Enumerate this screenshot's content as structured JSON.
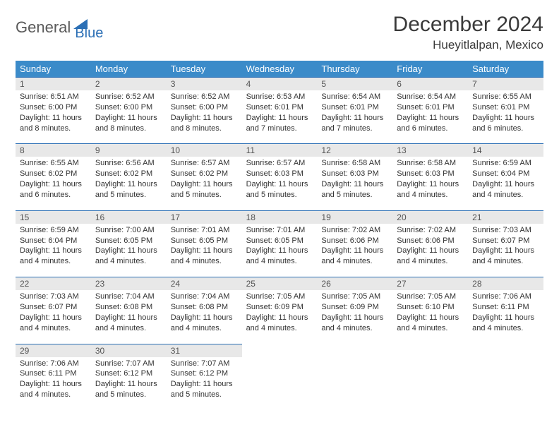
{
  "logo": {
    "text1": "General",
    "text2": "Blue"
  },
  "title": "December 2024",
  "location": "Hueyitlalpan, Mexico",
  "colors": {
    "header_bg": "#3b8bc9",
    "border": "#2b6fb5",
    "daynum_bg": "#e8e8e8",
    "logo_gray": "#5a5a5a",
    "logo_blue": "#2b6fb5"
  },
  "weekdays": [
    "Sunday",
    "Monday",
    "Tuesday",
    "Wednesday",
    "Thursday",
    "Friday",
    "Saturday"
  ],
  "weeks": [
    [
      {
        "n": "1",
        "sunrise": "Sunrise: 6:51 AM",
        "sunset": "Sunset: 6:00 PM",
        "daylight": "Daylight: 11 hours and 8 minutes."
      },
      {
        "n": "2",
        "sunrise": "Sunrise: 6:52 AM",
        "sunset": "Sunset: 6:00 PM",
        "daylight": "Daylight: 11 hours and 8 minutes."
      },
      {
        "n": "3",
        "sunrise": "Sunrise: 6:52 AM",
        "sunset": "Sunset: 6:00 PM",
        "daylight": "Daylight: 11 hours and 8 minutes."
      },
      {
        "n": "4",
        "sunrise": "Sunrise: 6:53 AM",
        "sunset": "Sunset: 6:01 PM",
        "daylight": "Daylight: 11 hours and 7 minutes."
      },
      {
        "n": "5",
        "sunrise": "Sunrise: 6:54 AM",
        "sunset": "Sunset: 6:01 PM",
        "daylight": "Daylight: 11 hours and 7 minutes."
      },
      {
        "n": "6",
        "sunrise": "Sunrise: 6:54 AM",
        "sunset": "Sunset: 6:01 PM",
        "daylight": "Daylight: 11 hours and 6 minutes."
      },
      {
        "n": "7",
        "sunrise": "Sunrise: 6:55 AM",
        "sunset": "Sunset: 6:01 PM",
        "daylight": "Daylight: 11 hours and 6 minutes."
      }
    ],
    [
      {
        "n": "8",
        "sunrise": "Sunrise: 6:55 AM",
        "sunset": "Sunset: 6:02 PM",
        "daylight": "Daylight: 11 hours and 6 minutes."
      },
      {
        "n": "9",
        "sunrise": "Sunrise: 6:56 AM",
        "sunset": "Sunset: 6:02 PM",
        "daylight": "Daylight: 11 hours and 5 minutes."
      },
      {
        "n": "10",
        "sunrise": "Sunrise: 6:57 AM",
        "sunset": "Sunset: 6:02 PM",
        "daylight": "Daylight: 11 hours and 5 minutes."
      },
      {
        "n": "11",
        "sunrise": "Sunrise: 6:57 AM",
        "sunset": "Sunset: 6:03 PM",
        "daylight": "Daylight: 11 hours and 5 minutes."
      },
      {
        "n": "12",
        "sunrise": "Sunrise: 6:58 AM",
        "sunset": "Sunset: 6:03 PM",
        "daylight": "Daylight: 11 hours and 5 minutes."
      },
      {
        "n": "13",
        "sunrise": "Sunrise: 6:58 AM",
        "sunset": "Sunset: 6:03 PM",
        "daylight": "Daylight: 11 hours and 4 minutes."
      },
      {
        "n": "14",
        "sunrise": "Sunrise: 6:59 AM",
        "sunset": "Sunset: 6:04 PM",
        "daylight": "Daylight: 11 hours and 4 minutes."
      }
    ],
    [
      {
        "n": "15",
        "sunrise": "Sunrise: 6:59 AM",
        "sunset": "Sunset: 6:04 PM",
        "daylight": "Daylight: 11 hours and 4 minutes."
      },
      {
        "n": "16",
        "sunrise": "Sunrise: 7:00 AM",
        "sunset": "Sunset: 6:05 PM",
        "daylight": "Daylight: 11 hours and 4 minutes."
      },
      {
        "n": "17",
        "sunrise": "Sunrise: 7:01 AM",
        "sunset": "Sunset: 6:05 PM",
        "daylight": "Daylight: 11 hours and 4 minutes."
      },
      {
        "n": "18",
        "sunrise": "Sunrise: 7:01 AM",
        "sunset": "Sunset: 6:05 PM",
        "daylight": "Daylight: 11 hours and 4 minutes."
      },
      {
        "n": "19",
        "sunrise": "Sunrise: 7:02 AM",
        "sunset": "Sunset: 6:06 PM",
        "daylight": "Daylight: 11 hours and 4 minutes."
      },
      {
        "n": "20",
        "sunrise": "Sunrise: 7:02 AM",
        "sunset": "Sunset: 6:06 PM",
        "daylight": "Daylight: 11 hours and 4 minutes."
      },
      {
        "n": "21",
        "sunrise": "Sunrise: 7:03 AM",
        "sunset": "Sunset: 6:07 PM",
        "daylight": "Daylight: 11 hours and 4 minutes."
      }
    ],
    [
      {
        "n": "22",
        "sunrise": "Sunrise: 7:03 AM",
        "sunset": "Sunset: 6:07 PM",
        "daylight": "Daylight: 11 hours and 4 minutes."
      },
      {
        "n": "23",
        "sunrise": "Sunrise: 7:04 AM",
        "sunset": "Sunset: 6:08 PM",
        "daylight": "Daylight: 11 hours and 4 minutes."
      },
      {
        "n": "24",
        "sunrise": "Sunrise: 7:04 AM",
        "sunset": "Sunset: 6:08 PM",
        "daylight": "Daylight: 11 hours and 4 minutes."
      },
      {
        "n": "25",
        "sunrise": "Sunrise: 7:05 AM",
        "sunset": "Sunset: 6:09 PM",
        "daylight": "Daylight: 11 hours and 4 minutes."
      },
      {
        "n": "26",
        "sunrise": "Sunrise: 7:05 AM",
        "sunset": "Sunset: 6:09 PM",
        "daylight": "Daylight: 11 hours and 4 minutes."
      },
      {
        "n": "27",
        "sunrise": "Sunrise: 7:05 AM",
        "sunset": "Sunset: 6:10 PM",
        "daylight": "Daylight: 11 hours and 4 minutes."
      },
      {
        "n": "28",
        "sunrise": "Sunrise: 7:06 AM",
        "sunset": "Sunset: 6:11 PM",
        "daylight": "Daylight: 11 hours and 4 minutes."
      }
    ],
    [
      {
        "n": "29",
        "sunrise": "Sunrise: 7:06 AM",
        "sunset": "Sunset: 6:11 PM",
        "daylight": "Daylight: 11 hours and 4 minutes."
      },
      {
        "n": "30",
        "sunrise": "Sunrise: 7:07 AM",
        "sunset": "Sunset: 6:12 PM",
        "daylight": "Daylight: 11 hours and 5 minutes."
      },
      {
        "n": "31",
        "sunrise": "Sunrise: 7:07 AM",
        "sunset": "Sunset: 6:12 PM",
        "daylight": "Daylight: 11 hours and 5 minutes."
      },
      null,
      null,
      null,
      null
    ]
  ]
}
